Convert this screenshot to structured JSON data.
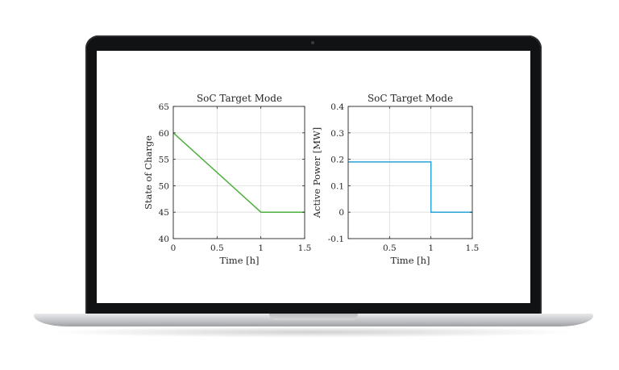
{
  "colors": {
    "soc_line": "#4caf3c",
    "power_line": "#29a3d6",
    "grid": "#dcdcdc",
    "axes": "#262626"
  },
  "chart_data": [
    {
      "type": "line",
      "title": "SoC Target Mode",
      "xlabel": "Time [h]",
      "ylabel": "State of Charge",
      "xlim": [
        0,
        1.5
      ],
      "ylim": [
        40,
        65
      ],
      "xticks": [
        0,
        0.5,
        1,
        1.5
      ],
      "xtick_labels": [
        "0",
        "0.5",
        "1",
        "1.5"
      ],
      "yticks": [
        40,
        45,
        50,
        55,
        60,
        65
      ],
      "ytick_labels": [
        "40",
        "45",
        "50",
        "55",
        "60",
        "65"
      ],
      "grid": true,
      "series": [
        {
          "x": [
            0,
            1,
            1.5
          ],
          "y": [
            60,
            45,
            45
          ]
        }
      ]
    },
    {
      "type": "line",
      "title": "SoC Target Mode",
      "xlabel": "Time [h]",
      "ylabel": "Active Power [MW]",
      "xlim": [
        0,
        1.5
      ],
      "ylim": [
        -0.1,
        0.4
      ],
      "xticks": [
        0.5,
        1,
        1.5
      ],
      "xtick_labels": [
        "0.5",
        "1",
        "1.5"
      ],
      "yticks": [
        -0.1,
        0,
        0.1,
        0.2,
        0.3,
        0.4
      ],
      "ytick_labels": [
        "-0.1",
        "0",
        "0.1",
        "0.2",
        "0.3",
        "0.4"
      ],
      "grid": true,
      "series": [
        {
          "x": [
            0,
            1,
            1,
            1.5
          ],
          "y": [
            0.19,
            0.19,
            0,
            0
          ]
        }
      ]
    }
  ]
}
